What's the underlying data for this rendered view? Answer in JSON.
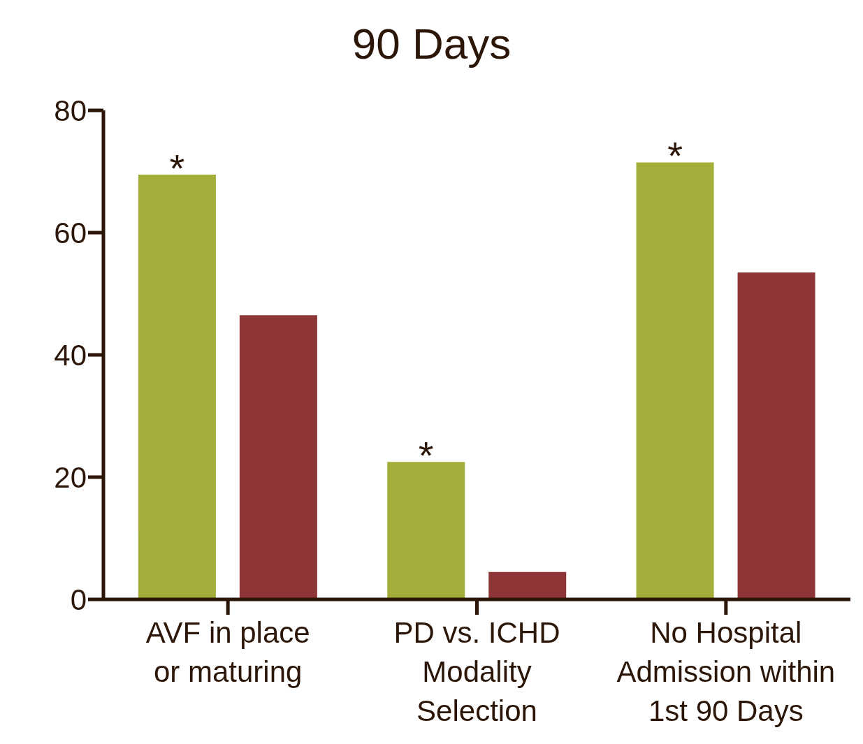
{
  "chart_data": {
    "type": "bar",
    "title": "90 Days",
    "categories": [
      "AVF in place\nor maturing",
      "PD vs. ICHD\nModality\nSelection",
      "No Hospital\nAdmission within\n1st 90 Days"
    ],
    "series": [
      {
        "color": "#a2ad3a",
        "values": [
          69.5,
          22.5,
          71.5
        ]
      },
      {
        "color": "#8e3537",
        "values": [
          46.5,
          4.5,
          53.5
        ]
      }
    ],
    "ylim": [
      0,
      80
    ],
    "yticks": [
      0,
      20,
      40,
      60,
      80
    ],
    "grid": false,
    "legend": false,
    "annotations": [
      "*",
      "*",
      "*"
    ]
  }
}
